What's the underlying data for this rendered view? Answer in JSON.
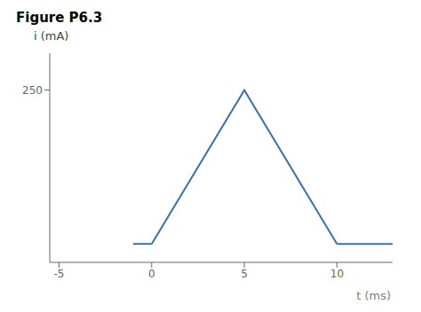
{
  "chart_data": {
    "type": "line",
    "title": "Figure P6.3",
    "xlabel": "t (ms)",
    "ylabel": "i (mA)",
    "xlim": [
      -5.5,
      13
    ],
    "xticks": [
      -5,
      0,
      5,
      10
    ],
    "ylim": [
      -30,
      310
    ],
    "yticks": [
      250
    ],
    "series": [
      {
        "x": [
          -1,
          0
        ],
        "values": [
          0,
          0
        ],
        "color": "#3a6fad"
      },
      {
        "x": [
          0,
          5,
          10
        ],
        "values": [
          0,
          250,
          0
        ],
        "color": "#3a6fad"
      },
      {
        "x": [
          10,
          13
        ],
        "values": [
          0,
          0
        ],
        "color": "#3a6fad"
      }
    ]
  }
}
